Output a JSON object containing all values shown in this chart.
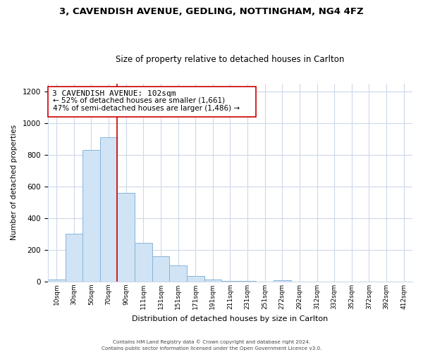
{
  "title": "3, CAVENDISH AVENUE, GEDLING, NOTTINGHAM, NG4 4FZ",
  "subtitle": "Size of property relative to detached houses in Carlton",
  "xlabel": "Distribution of detached houses by size in Carlton",
  "ylabel": "Number of detached properties",
  "bar_labels": [
    "10sqm",
    "30sqm",
    "50sqm",
    "70sqm",
    "90sqm",
    "111sqm",
    "131sqm",
    "151sqm",
    "171sqm",
    "191sqm",
    "211sqm",
    "231sqm",
    "251sqm",
    "272sqm",
    "292sqm",
    "312sqm",
    "332sqm",
    "352sqm",
    "372sqm",
    "392sqm",
    "412sqm"
  ],
  "bar_values": [
    15,
    300,
    830,
    910,
    560,
    245,
    160,
    100,
    35,
    15,
    5,
    3,
    2,
    10,
    2,
    2,
    2,
    2,
    2,
    2,
    2
  ],
  "bar_color": "#d0e4f5",
  "bar_edge_color": "#8ab4d8",
  "annotation_title": "3 CAVENDISH AVENUE: 102sqm",
  "annotation_line1": "← 52% of detached houses are smaller (1,661)",
  "annotation_line2": "47% of semi-detached houses are larger (1,486) →",
  "vline_color": "#cc0000",
  "vline_x_index": 3.5,
  "ylim": [
    0,
    1250
  ],
  "yticks": [
    0,
    200,
    400,
    600,
    800,
    1000,
    1200
  ],
  "footer1": "Contains HM Land Registry data © Crown copyright and database right 2024.",
  "footer2": "Contains public sector information licensed under the Open Government Licence v3.0.",
  "bg_color": "#ffffff",
  "grid_color": "#ccd8ea"
}
